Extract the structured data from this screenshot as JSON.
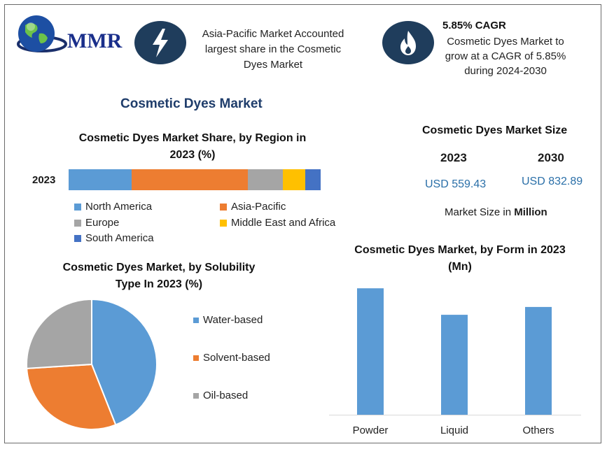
{
  "brand": {
    "name": "MMR"
  },
  "header": {
    "card1_text_lines": [
      "Asia-Pacific Market Accounted",
      "largest share in the Cosmetic",
      "Dyes Market"
    ],
    "card2_title": "5.85% CAGR",
    "card2_text_lines": [
      "Cosmetic Dyes Market to",
      "grow at a CAGR of 5.85%",
      "during 2024-2030"
    ]
  },
  "main_title": "Cosmetic Dyes Market",
  "market_size": {
    "title": "Cosmetic Dyes Market Size",
    "year_a": "2023",
    "year_b": "2030",
    "value_a": "USD 559.43",
    "value_b": "USD 832.89",
    "note_prefix": "Market Size in ",
    "note_bold": "Million"
  },
  "colors": {
    "navy": "#1f3d5c",
    "water": "#5b9bd5",
    "solvent": "#ed7d31",
    "oil": "#a5a5a5",
    "mea": "#ffc000",
    "south_america": "#4472c4"
  },
  "icons": [
    "lightning-icon",
    "flame-icon",
    "globe-icon"
  ],
  "chart_data": [
    {
      "type": "bar",
      "orientation": "horizontal-stacked",
      "title_lines": [
        "Cosmetic Dyes Market Share, by Region in",
        "2023 (%)"
      ],
      "categories": [
        "2023"
      ],
      "series": [
        {
          "name": "North America",
          "values": [
            25
          ],
          "color": "#5b9bd5"
        },
        {
          "name": "Asia-Pacific",
          "values": [
            46
          ],
          "color": "#ed7d31"
        },
        {
          "name": "Europe",
          "values": [
            14
          ],
          "color": "#a5a5a5"
        },
        {
          "name": "Middle East and Africa",
          "values": [
            9
          ],
          "color": "#ffc000"
        },
        {
          "name": "South America",
          "values": [
            6
          ],
          "color": "#4472c4"
        }
      ]
    },
    {
      "type": "pie",
      "title_lines": [
        "Cosmetic Dyes Market, by Solubility",
        "Type In 2023 (%)"
      ],
      "slices": [
        {
          "name": "Water-based",
          "value": 44,
          "color": "#5b9bd5"
        },
        {
          "name": "Solvent-based",
          "value": 30,
          "color": "#ed7d31"
        },
        {
          "name": "Oil-based",
          "value": 26,
          "color": "#a5a5a5"
        }
      ]
    },
    {
      "type": "bar",
      "title_lines": [
        "Cosmetic Dyes Market, by Form in 2023",
        "(Mn)"
      ],
      "categories": [
        "Powder",
        "Liquid",
        "Others"
      ],
      "values": [
        210,
        166,
        179
      ],
      "ylim": [
        0,
        230
      ],
      "color": "#5b9bd5"
    }
  ]
}
